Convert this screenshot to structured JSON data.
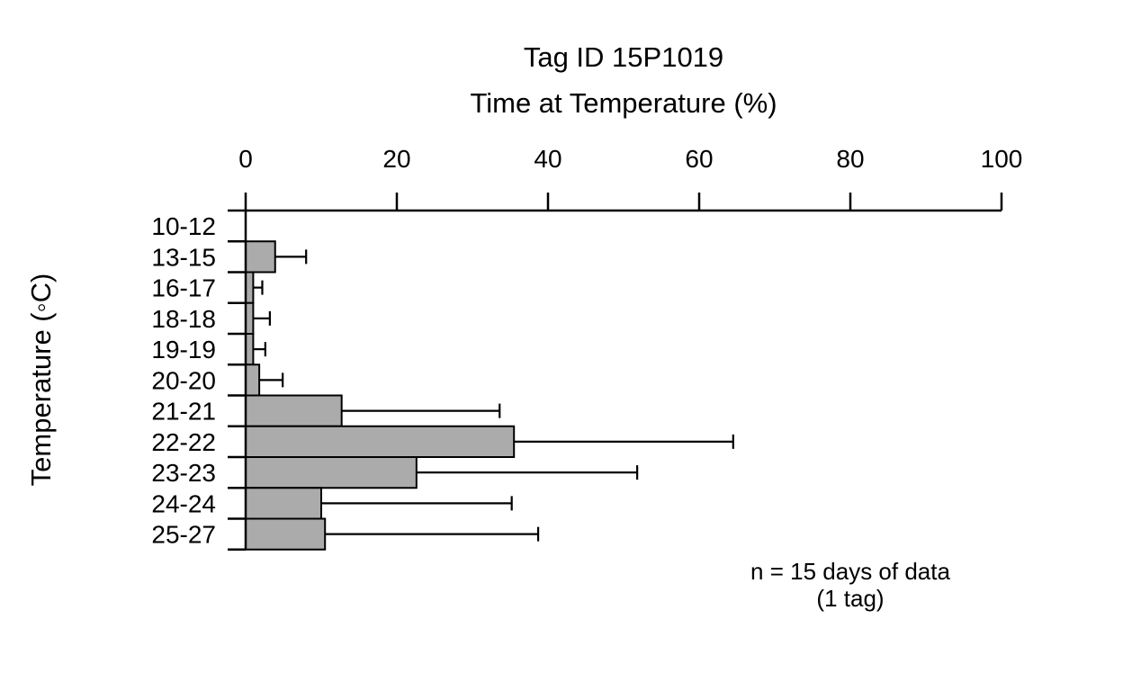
{
  "page": {
    "background": "#ffffff"
  },
  "chart": {
    "title_line1": "Tag ID 15P1019",
    "title_line2": "Time at Temperature (%)",
    "y_axis_title": "Temperature (◦C)",
    "note_line1": "n = 15 days of data",
    "note_line2": "(1 tag)"
  },
  "chart_data": {
    "type": "bar",
    "orientation": "horizontal",
    "title": "Tag ID 15P1019",
    "subtitle": "Time at Temperature (%)",
    "xlabel": "Time at Temperature (%)",
    "ylabel": "Temperature (◦C)",
    "xlim": [
      0,
      100
    ],
    "x_ticks": [
      0,
      20,
      40,
      60,
      80,
      100
    ],
    "grid": false,
    "legend": false,
    "categories": [
      "10-12",
      "13-15",
      "16-17",
      "18-18",
      "19-19",
      "20-20",
      "21-21",
      "22-22",
      "23-23",
      "24-24",
      "25-27"
    ],
    "values": [
      0,
      3.9,
      1.0,
      1.0,
      1.0,
      1.8,
      12.7,
      35.5,
      22.6,
      10.0,
      10.5
    ],
    "error_upper": [
      0,
      8.0,
      2.2,
      3.2,
      2.6,
      4.9,
      33.6,
      64.5,
      51.8,
      35.2,
      38.7
    ],
    "bar_fill": "#ababab",
    "bar_stroke": "#000000",
    "axis_color": "#000000",
    "note": [
      "n = 15 days of data",
      "(1 tag)"
    ]
  }
}
